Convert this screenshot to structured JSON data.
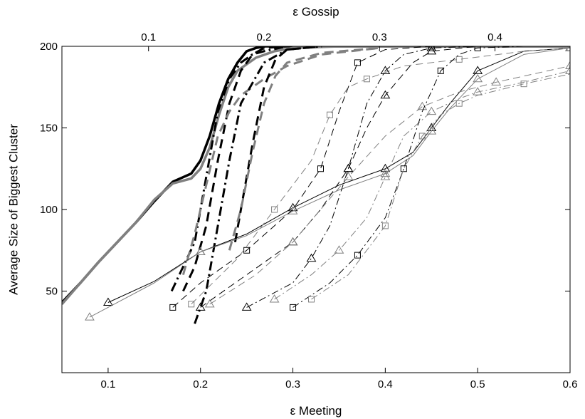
{
  "chart_data": {
    "type": "line",
    "xlabel": "ε Meeting",
    "x2label": "ε Gossip",
    "ylabel": "Average Size of Biggest Cluster",
    "xlim": [
      0.05,
      0.6
    ],
    "ylim": [
      0,
      200
    ],
    "x2lim": [
      0.025,
      0.465
    ],
    "xticks": [
      0.1,
      0.2,
      0.3,
      0.4,
      0.5,
      0.6
    ],
    "xtick_labels": [
      "0.1",
      "0.2",
      "0.3",
      "0.4",
      "0.5",
      "0.6"
    ],
    "x2ticks": [
      0.1,
      0.2,
      0.3,
      0.4
    ],
    "x2tick_labels": [
      "0.1",
      "0.2",
      "0.3",
      "0.4"
    ],
    "yticks": [
      50,
      100,
      150,
      200
    ],
    "ytick_labels": [
      "50",
      "100",
      "150",
      "200"
    ],
    "grid": false,
    "legend": "none",
    "colors": {
      "black": "#000000",
      "gray": "#808080"
    },
    "series": [
      {
        "axis": "bottom",
        "color": "black",
        "style": "solid",
        "width": 3.5,
        "marker": "none",
        "x": [
          0.05,
          0.07,
          0.09,
          0.11,
          0.13,
          0.15,
          0.17,
          0.19,
          0.2,
          0.21,
          0.22,
          0.23,
          0.24,
          0.25,
          0.26,
          0.27,
          0.28,
          0.3,
          0.35,
          0.6
        ],
        "y": [
          43,
          55,
          68,
          80,
          92,
          105,
          117,
          122,
          130,
          145,
          165,
          180,
          190,
          197,
          199,
          200,
          200,
          200,
          200,
          200
        ]
      },
      {
        "axis": "bottom",
        "color": "gray",
        "style": "solid",
        "width": 3.5,
        "marker": "none",
        "x": [
          0.05,
          0.07,
          0.09,
          0.11,
          0.13,
          0.15,
          0.17,
          0.19,
          0.2,
          0.21,
          0.22,
          0.23,
          0.24,
          0.26,
          0.28,
          0.3,
          0.35,
          0.6
        ],
        "y": [
          42,
          55,
          68,
          80,
          92,
          106,
          116,
          119,
          125,
          138,
          158,
          175,
          185,
          193,
          197,
          199,
          200,
          200
        ]
      },
      {
        "axis": "top",
        "color": "black",
        "style": "dashdot",
        "width": 3,
        "marker": "none",
        "x": [
          0.12,
          0.14,
          0.15,
          0.16,
          0.17,
          0.18,
          0.19,
          0.2,
          0.22
        ],
        "y": [
          50,
          80,
          120,
          160,
          180,
          190,
          195,
          197,
          200
        ]
      },
      {
        "axis": "top",
        "color": "black",
        "style": "dashed",
        "width": 3,
        "marker": "none",
        "x": [
          0.13,
          0.14,
          0.15,
          0.16,
          0.17,
          0.18,
          0.19,
          0.2,
          0.22
        ],
        "y": [
          50,
          65,
          90,
          130,
          165,
          185,
          195,
          199,
          200
        ]
      },
      {
        "axis": "top",
        "color": "gray",
        "style": "dashed",
        "width": 3,
        "marker": "none",
        "x": [
          0.13,
          0.14,
          0.15,
          0.16,
          0.17,
          0.18,
          0.2,
          0.22,
          0.25,
          0.3
        ],
        "y": [
          60,
          85,
          115,
          145,
          160,
          170,
          180,
          188,
          195,
          199
        ]
      },
      {
        "axis": "top",
        "color": "black",
        "style": "dashdot",
        "width": 3,
        "marker": "none",
        "x": [
          0.14,
          0.15,
          0.16,
          0.17,
          0.18,
          0.2,
          0.22,
          0.25
        ],
        "y": [
          30,
          50,
          90,
          130,
          165,
          190,
          198,
          200
        ]
      },
      {
        "axis": "top",
        "color": "black",
        "style": "dashed",
        "width": 3,
        "marker": "none",
        "x": [
          0.175,
          0.18,
          0.19,
          0.2,
          0.21,
          0.22,
          0.25
        ],
        "y": [
          80,
          100,
          140,
          175,
          192,
          198,
          200
        ]
      },
      {
        "axis": "top",
        "color": "gray",
        "style": "dashed",
        "width": 3,
        "marker": "none",
        "x": [
          0.17,
          0.18,
          0.19,
          0.2,
          0.21,
          0.22,
          0.25,
          0.3
        ],
        "y": [
          75,
          100,
          135,
          165,
          182,
          190,
          196,
          199
        ]
      },
      {
        "axis": "bottom",
        "color": "black",
        "style": "solid",
        "width": 1,
        "marker": "triangle",
        "x": [
          0.1,
          0.15,
          0.2,
          0.25,
          0.3,
          0.35,
          0.4,
          0.43,
          0.45,
          0.47,
          0.5,
          0.55,
          0.6
        ],
        "y": [
          43,
          56,
          74,
          85,
          101,
          115,
          125,
          135,
          150,
          165,
          185,
          197,
          199
        ]
      },
      {
        "axis": "bottom",
        "color": "gray",
        "style": "solid",
        "width": 1,
        "marker": "triangle",
        "x": [
          0.08,
          0.15,
          0.2,
          0.25,
          0.3,
          0.35,
          0.4,
          0.43,
          0.45,
          0.47,
          0.5,
          0.55,
          0.6
        ],
        "y": [
          34,
          55,
          74,
          84,
          99,
          112,
          122,
          133,
          148,
          162,
          180,
          195,
          199
        ]
      },
      {
        "axis": "bottom",
        "color": "black",
        "style": "dashed",
        "width": 1,
        "marker": "square",
        "x": [
          0.17,
          0.2,
          0.25,
          0.3,
          0.33,
          0.35,
          0.37,
          0.4,
          0.45,
          0.5
        ],
        "y": [
          40,
          55,
          75,
          100,
          125,
          160,
          190,
          198,
          200,
          200
        ]
      },
      {
        "axis": "bottom",
        "color": "gray",
        "style": "dashed",
        "width": 1,
        "marker": "square",
        "x": [
          0.19,
          0.24,
          0.28,
          0.32,
          0.34,
          0.36,
          0.38,
          0.42,
          0.48,
          0.55,
          0.6
        ],
        "y": [
          42,
          70,
          100,
          130,
          158,
          175,
          180,
          188,
          192,
          197,
          199
        ]
      },
      {
        "axis": "bottom",
        "color": "black",
        "style": "dashed",
        "width": 1,
        "marker": "triangle",
        "x": [
          0.2,
          0.25,
          0.3,
          0.33,
          0.36,
          0.38,
          0.4,
          0.43,
          0.45,
          0.5
        ],
        "y": [
          40,
          60,
          80,
          100,
          125,
          150,
          170,
          190,
          197,
          200
        ]
      },
      {
        "axis": "bottom",
        "color": "gray",
        "style": "dashed",
        "width": 1,
        "marker": "triangle",
        "x": [
          0.21,
          0.26,
          0.3,
          0.33,
          0.36,
          0.4,
          0.44,
          0.48,
          0.52,
          0.56,
          0.6
        ],
        "y": [
          42,
          60,
          80,
          100,
          120,
          145,
          163,
          172,
          178,
          183,
          188
        ]
      },
      {
        "axis": "bottom",
        "color": "black",
        "style": "dashdot",
        "width": 1,
        "marker": "triangle",
        "x": [
          0.25,
          0.3,
          0.32,
          0.34,
          0.36,
          0.38,
          0.4,
          0.42,
          0.45,
          0.5
        ],
        "y": [
          40,
          55,
          70,
          90,
          125,
          165,
          185,
          195,
          199,
          200
        ]
      },
      {
        "axis": "bottom",
        "color": "gray",
        "style": "dashdot",
        "width": 1,
        "marker": "triangle",
        "x": [
          0.28,
          0.32,
          0.35,
          0.38,
          0.4,
          0.42,
          0.45,
          0.48,
          0.5,
          0.55,
          0.6
        ],
        "y": [
          45,
          60,
          75,
          95,
          120,
          145,
          160,
          168,
          172,
          178,
          185
        ]
      },
      {
        "axis": "bottom",
        "color": "black",
        "style": "dashdot",
        "width": 1,
        "marker": "square",
        "x": [
          0.3,
          0.34,
          0.37,
          0.4,
          0.42,
          0.44,
          0.46,
          0.48,
          0.5,
          0.55
        ],
        "y": [
          40,
          55,
          72,
          95,
          125,
          160,
          185,
          195,
          199,
          200
        ]
      },
      {
        "axis": "bottom",
        "color": "gray",
        "style": "dashdot",
        "width": 1,
        "marker": "square",
        "x": [
          0.32,
          0.36,
          0.4,
          0.42,
          0.44,
          0.46,
          0.48,
          0.5,
          0.55,
          0.6
        ],
        "y": [
          45,
          60,
          90,
          125,
          145,
          158,
          165,
          170,
          177,
          183
        ]
      }
    ]
  }
}
